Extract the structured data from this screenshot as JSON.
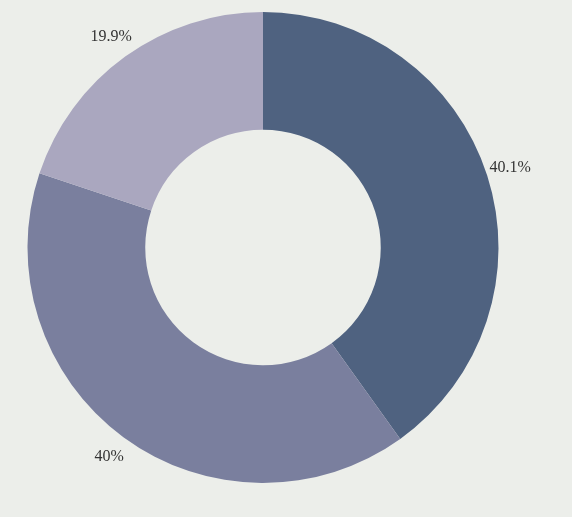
{
  "chart_data": {
    "type": "doughnut",
    "categories": [
      null,
      null,
      null
    ],
    "values": [
      40.1,
      40,
      19.9
    ],
    "value_labels": [
      "40.1%",
      "40%",
      "19.9%"
    ],
    "colors": [
      "#4f6280",
      "#7a7f9e",
      "#aaa7bf"
    ],
    "data_labels": true
  }
}
